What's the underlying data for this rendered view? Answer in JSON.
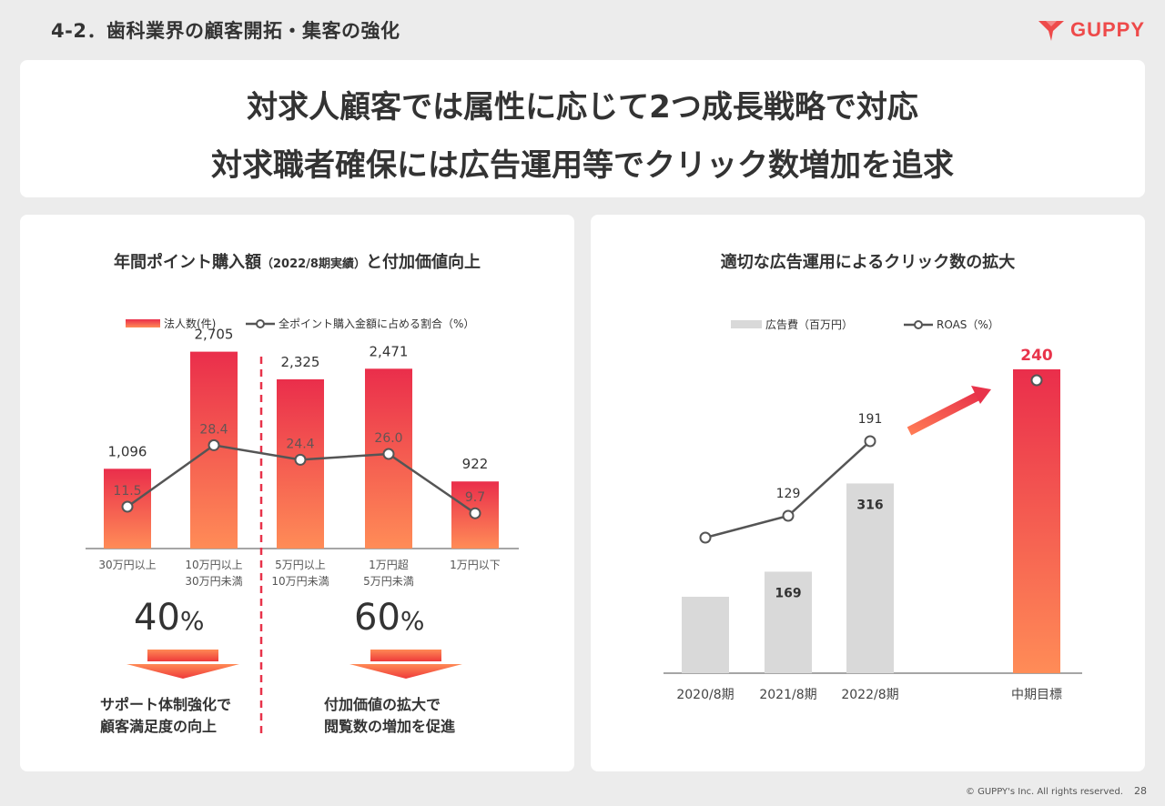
{
  "header": {
    "section_title": "4-2．歯科業界の顧客開拓・集客の強化",
    "logo_text": "GUPPY",
    "logo_icon": "guppy-logo-icon"
  },
  "headline": {
    "line1": "対求人顧客では属性に応じて2つ成長戦略で対応",
    "line2": "対求職者確保には広告運用等でクリック数増加を追求"
  },
  "left_panel": {
    "title_main": "年間ポイント購入額",
    "title_small": "（2022/8期実績）",
    "title_tail": "と付加価値向上",
    "legend_bar": "法人数(件)",
    "legend_line": "全ポイント購入金額に占める割合（%）",
    "group1": {
      "pct_value": "40",
      "pct_unit": "%",
      "caption_line1": "サポート体制強化で",
      "caption_line2": "顧客満足度の向上"
    },
    "group2": {
      "pct_value": "60",
      "pct_unit": "%",
      "caption_line1": "付加価値の拡大で",
      "caption_line2": "閲覧数の増加を促進"
    }
  },
  "right_panel": {
    "title": "適切な広告運用によるクリック数の拡大",
    "legend_bar": "広告費（百万円）",
    "legend_line": "ROAS（%）"
  },
  "footer": {
    "copyright": "© GUPPY's Inc. All rights reserved.",
    "page": "28"
  },
  "colors": {
    "accent_red": "#e8334a",
    "accent_orange": "#ff8a55",
    "gray_bar": "#d9d9d9",
    "line_gray": "#555555"
  },
  "chart_data": [
    {
      "type": "bar",
      "title": "",
      "categories": [
        [
          "30万円以上"
        ],
        [
          "10万円以上",
          "30万円未満"
        ],
        [
          "5万円以上",
          "10万円未満"
        ],
        [
          "1万円超",
          "5万円未満"
        ],
        [
          "1万円以下"
        ]
      ],
      "series": [
        {
          "name": "法人数(件)",
          "kind": "bar",
          "values": [
            1096,
            2705,
            2325,
            2471,
            922
          ],
          "labels": [
            "1,096",
            "2,705",
            "2,325",
            "2,471",
            "922"
          ]
        },
        {
          "name": "全ポイント購入金額に占める割合（%）",
          "kind": "line",
          "values": [
            11.5,
            28.4,
            24.4,
            26.0,
            9.7
          ],
          "labels": [
            "11.5",
            "28.4",
            "24.4",
            "26.0",
            "9.7"
          ]
        }
      ],
      "ylim_bar": [
        0,
        3000
      ],
      "ylim_line": [
        0,
        60
      ],
      "grid": false,
      "legend": "top"
    },
    {
      "type": "bar",
      "title": "",
      "categories": [
        [
          "2020/8期"
        ],
        [
          "2021/8期"
        ],
        [
          "2022/8期"
        ],
        [
          "中期目標"
        ]
      ],
      "series": [
        {
          "name": "広告費（百万円）",
          "kind": "bar",
          "values": [
            null,
            169,
            316,
            null
          ],
          "labels": [
            "",
            "169",
            "316",
            ""
          ]
        },
        {
          "name": "ROAS（%）",
          "kind": "line",
          "values": [
            null,
            129,
            191,
            240
          ],
          "labels": [
            "",
            "129",
            "191",
            "240"
          ]
        }
      ],
      "grid": false,
      "legend": "top"
    }
  ]
}
